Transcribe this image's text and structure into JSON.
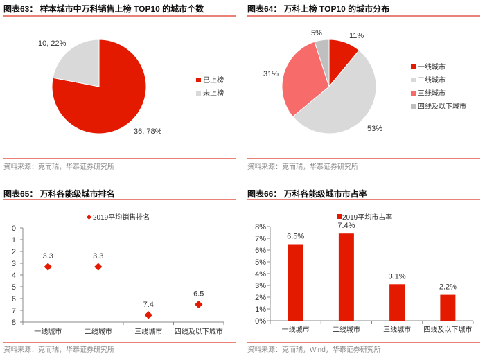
{
  "colors": {
    "accent": "#e31a00",
    "rule": "#e0584a",
    "light_gray": "#d9d9d9",
    "mid_gray": "#bfbfbf",
    "pink": "#f76b6b"
  },
  "chart_data": [
    {
      "type": "pie",
      "title": "图表63：  样本城市中万科销售上榜 TOP10 的城市个数",
      "source": "资料来源：克而瑞，华泰证券研究所",
      "slices": [
        {
          "name": "已上榜",
          "value": 36,
          "percent": 78,
          "label": "36, 78%",
          "color": "#e31a00"
        },
        {
          "name": "未上榜",
          "value": 10,
          "percent": 22,
          "label": "10, 22%",
          "color": "#d9d9d9"
        }
      ],
      "legend": "right"
    },
    {
      "type": "pie",
      "title": "图表64：  万科上榜 TOP10 的城市分布",
      "source": "资料来源：克而瑞，华泰证券研究所",
      "slices": [
        {
          "name": "一线城市",
          "percent": 11,
          "label": "11%",
          "color": "#e31a00"
        },
        {
          "name": "二线城市",
          "percent": 53,
          "label": "53%",
          "color": "#d9d9d9"
        },
        {
          "name": "三线城市",
          "percent": 31,
          "label": "31%",
          "color": "#f76b6b"
        },
        {
          "name": "四线及以下城市",
          "percent": 5,
          "label": "5%",
          "color": "#bfbfbf"
        }
      ],
      "legend": "right"
    },
    {
      "type": "scatter",
      "title": "图表65：  万科各能级城市排名",
      "source": "资料来源：克而瑞，华泰证券研究所",
      "series_name": "2019平均销售排名",
      "categories": [
        "一线城市",
        "二线城市",
        "三线城市",
        "四线及以下城市"
      ],
      "values": [
        3.3,
        3.3,
        7.4,
        6.5
      ],
      "value_labels": [
        "3.3",
        "3.3",
        "7.4",
        "6.5"
      ],
      "ylim": [
        0,
        8
      ],
      "y_inverted": true,
      "yticks": [
        "0",
        "1",
        "2",
        "3",
        "4",
        "5",
        "6",
        "7",
        "8"
      ],
      "legend": "top"
    },
    {
      "type": "bar",
      "title": "图表66：  万科各能级城市市占率",
      "source": "资料来源：克而瑞，Wind，华泰证券研究所",
      "series_name": "2019平均市占率",
      "categories": [
        "一线城市",
        "二线城市",
        "三线城市",
        "四线及以下城市"
      ],
      "values": [
        6.5,
        7.4,
        3.1,
        2.2
      ],
      "value_labels": [
        "6.5%",
        "7.4%",
        "3.1%",
        "2.2%"
      ],
      "ylim": [
        0,
        8
      ],
      "yticks": [
        "0%",
        "1%",
        "2%",
        "3%",
        "4%",
        "5%",
        "6%",
        "7%",
        "8%"
      ],
      "legend": "top"
    }
  ]
}
